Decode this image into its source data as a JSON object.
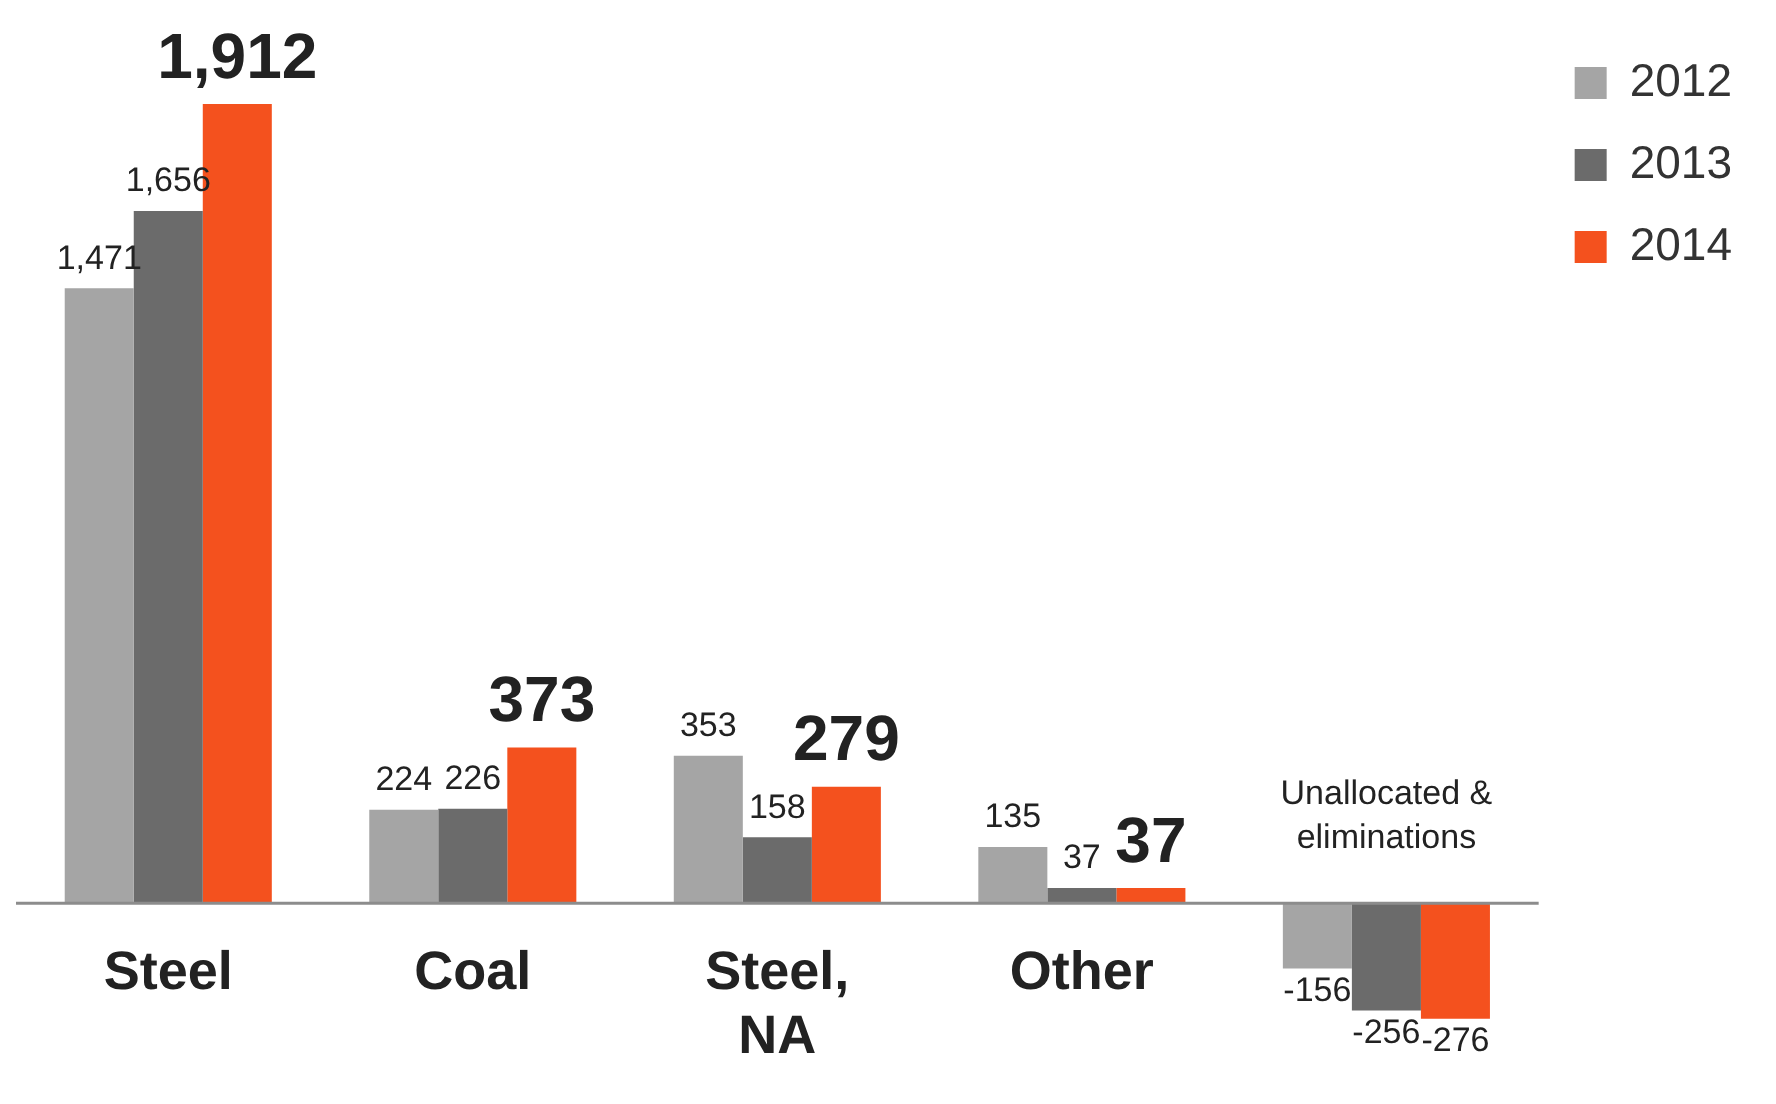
{
  "chart_data": {
    "type": "bar",
    "categories": [
      "Steel",
      "Coal",
      "Steel, NA",
      "Other",
      "Unallocated & eliminations"
    ],
    "series": [
      {
        "name": "2012",
        "color": "#a5a5a5",
        "values": [
          1471,
          224,
          353,
          135,
          -156
        ],
        "value_labels": [
          "1,471",
          "224",
          "353",
          "135",
          "-156"
        ]
      },
      {
        "name": "2013",
        "color": "#6b6b6b",
        "values": [
          1656,
          226,
          158,
          37,
          -256
        ],
        "value_labels": [
          "1,656",
          "226",
          "158",
          "37",
          "-256"
        ]
      },
      {
        "name": "2014",
        "color": "#f4511e",
        "values": [
          1912,
          373,
          279,
          37,
          -276
        ],
        "value_labels": [
          "1,912",
          "373",
          "279",
          "37",
          "-276"
        ]
      }
    ],
    "legend": "top right",
    "grid": false
  }
}
